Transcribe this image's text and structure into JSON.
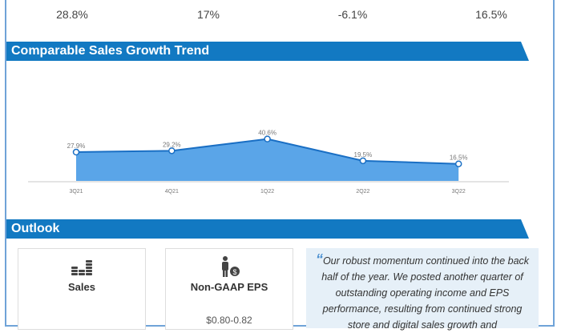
{
  "stats": [
    "28.8%",
    "17%",
    "-6.1%",
    "16.5%"
  ],
  "trend_section": {
    "title": "Comparable Sales Growth Trend"
  },
  "chart_data": {
    "type": "area",
    "title": "Comparable Sales Growth Trend",
    "categories": [
      "3Q21",
      "4Q21",
      "1Q22",
      "2Q22",
      "3Q22"
    ],
    "values": [
      27.9,
      29.2,
      40.6,
      19.5,
      16.5
    ],
    "labels": [
      "27.9%",
      "29.2%",
      "40.6%",
      "19.5%",
      "16.5%"
    ],
    "ylim": [
      0,
      45
    ],
    "grid": false,
    "color": "#5aa5e8"
  },
  "outlook": {
    "title": "Outlook",
    "cards": [
      {
        "label": "Sales",
        "icon": "coins-stack-icon"
      },
      {
        "label": "Non-GAAP EPS",
        "icon": "person-dollar-icon",
        "value": "$0.80-0.82"
      }
    ],
    "quote": "Our robust momentum continued into the back half of the year. We posted another quarter of outstanding operating income and EPS performance, resulting from continued strong store and digital sales growth and"
  }
}
